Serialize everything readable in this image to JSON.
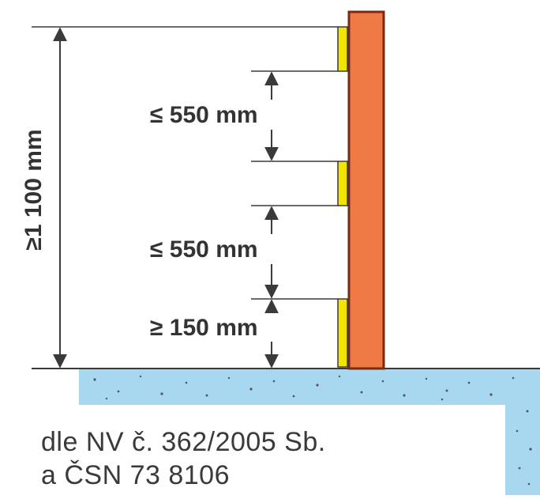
{
  "dimensions": {
    "total_height": "≥1 100 mm",
    "upper_gap": "≤ 550 mm",
    "middle_gap": "≤ 550 mm",
    "toe_board": "≥ 150 mm"
  },
  "caption": {
    "line1": "dle NV č. 362/2005 Sb.",
    "line2": "a ČSN 73 8106"
  },
  "colors": {
    "post": "#f07a45",
    "post_outline": "#7a2a10",
    "rail": "#f2e600",
    "floor": "#a8d8f0",
    "line": "#3a3a3a"
  }
}
